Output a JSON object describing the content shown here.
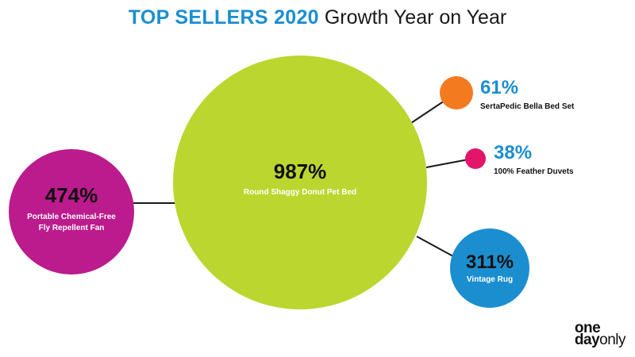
{
  "title": {
    "accent": "TOP SELLERS 2020",
    "rest": "Growth Year on Year"
  },
  "chart_data": {
    "type": "bubble",
    "title": "TOP SELLERS 2020 Growth Year on Year",
    "items": [
      {
        "name": "Round Shaggy Donut Pet Bed",
        "value": 987,
        "label": "987%",
        "color": "#bcd630",
        "label_color": "#111111",
        "name_color": "#ffffff",
        "label_side": "inside"
      },
      {
        "name": "Portable Chemical-Free Fly Repellent Fan",
        "name_lines": [
          "Portable Chemical-Free",
          "Fly Repellent Fan"
        ],
        "value": 474,
        "label": "474%",
        "color": "#bb1b8c",
        "label_color": "#111111",
        "name_color": "#ffffff",
        "label_side": "inside"
      },
      {
        "name": "Vintage Rug",
        "value": 311,
        "label": "311%",
        "color": "#1b8ed0",
        "label_color": "#111111",
        "name_color": "#ffffff",
        "label_side": "inside"
      },
      {
        "name": "SertaPedic Bella Bed Set",
        "value": 61,
        "label": "61%",
        "color": "#f47a20",
        "label_color": "#1b8ed0",
        "name_color": "#111111",
        "label_side": "right"
      },
      {
        "name": "100% Feather Duvets",
        "value": 38,
        "label": "38%",
        "color": "#e2156b",
        "label_color": "#1b8ed0",
        "name_color": "#111111",
        "label_side": "right"
      }
    ]
  },
  "logo": {
    "line1": "one",
    "line2a": "day",
    "line2b": "only"
  }
}
